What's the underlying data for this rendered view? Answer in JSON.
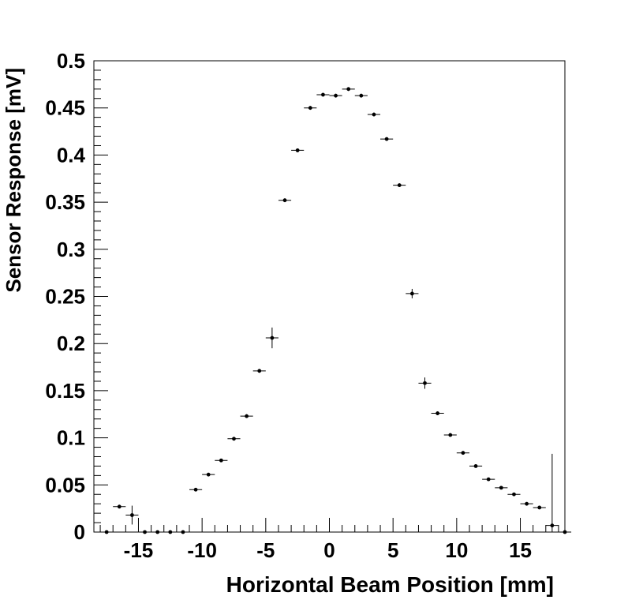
{
  "chart_data": {
    "type": "scatter",
    "title": "",
    "xlabel": "Horizontal Beam Position [mm]",
    "ylabel": "Sensor Response [mV]",
    "xlim": [
      -18.5,
      18.5
    ],
    "ylim": [
      0,
      0.5
    ],
    "xticks": [
      -15,
      -10,
      -5,
      0,
      5,
      10,
      15
    ],
    "xtick_labels": [
      "-15",
      "-10",
      "-5",
      "0",
      "5",
      "10",
      "15"
    ],
    "yticks": [
      0,
      0.05,
      0.1,
      0.15,
      0.2,
      0.25,
      0.3,
      0.35,
      0.4,
      0.45,
      0.5
    ],
    "ytick_labels": [
      "0",
      "0.05",
      "0.1",
      "0.15",
      "0.2",
      "0.25",
      "0.3",
      "0.35",
      "0.4",
      "0.45",
      "0.5"
    ],
    "grid": false,
    "legend": "none",
    "marker_color": "#000000",
    "x_bin_half_width": 0.5,
    "points": [
      {
        "x": -17.5,
        "y": 0.0,
        "err": 0.0
      },
      {
        "x": -16.5,
        "y": 0.027,
        "err": 0.002
      },
      {
        "x": -15.5,
        "y": 0.018,
        "err": 0.01
      },
      {
        "x": -14.5,
        "y": 0.0,
        "err": 0.0
      },
      {
        "x": -13.5,
        "y": 0.0,
        "err": 0.0
      },
      {
        "x": -12.5,
        "y": 0.0,
        "err": 0.0
      },
      {
        "x": -11.5,
        "y": 0.0,
        "err": 0.0
      },
      {
        "x": -10.5,
        "y": 0.045,
        "err": 0.001
      },
      {
        "x": -9.5,
        "y": 0.061,
        "err": 0.001
      },
      {
        "x": -8.5,
        "y": 0.076,
        "err": 0.001
      },
      {
        "x": -7.5,
        "y": 0.099,
        "err": 0.001
      },
      {
        "x": -6.5,
        "y": 0.123,
        "err": 0.002
      },
      {
        "x": -5.5,
        "y": 0.171,
        "err": 0.002
      },
      {
        "x": -4.5,
        "y": 0.206,
        "err": 0.011
      },
      {
        "x": -3.5,
        "y": 0.352,
        "err": 0.002
      },
      {
        "x": -2.5,
        "y": 0.405,
        "err": 0.002
      },
      {
        "x": -1.5,
        "y": 0.45,
        "err": 0.002
      },
      {
        "x": -0.5,
        "y": 0.464,
        "err": 0.002
      },
      {
        "x": 0.5,
        "y": 0.463,
        "err": 0.002
      },
      {
        "x": 1.5,
        "y": 0.47,
        "err": 0.002
      },
      {
        "x": 2.5,
        "y": 0.463,
        "err": 0.002
      },
      {
        "x": 3.5,
        "y": 0.443,
        "err": 0.002
      },
      {
        "x": 4.5,
        "y": 0.417,
        "err": 0.002
      },
      {
        "x": 5.5,
        "y": 0.368,
        "err": 0.002
      },
      {
        "x": 6.5,
        "y": 0.253,
        "err": 0.005
      },
      {
        "x": 7.5,
        "y": 0.158,
        "err": 0.006
      },
      {
        "x": 8.5,
        "y": 0.126,
        "err": 0.002
      },
      {
        "x": 9.5,
        "y": 0.103,
        "err": 0.001
      },
      {
        "x": 10.5,
        "y": 0.084,
        "err": 0.001
      },
      {
        "x": 11.5,
        "y": 0.07,
        "err": 0.001
      },
      {
        "x": 12.5,
        "y": 0.056,
        "err": 0.001
      },
      {
        "x": 13.5,
        "y": 0.047,
        "err": 0.001
      },
      {
        "x": 14.5,
        "y": 0.04,
        "err": 0.001
      },
      {
        "x": 15.5,
        "y": 0.03,
        "err": 0.001
      },
      {
        "x": 16.5,
        "y": 0.026,
        "err": 0.001
      },
      {
        "x": 17.5,
        "y": 0.007,
        "err": 0.076
      },
      {
        "x": 18.5,
        "y": 0.0,
        "err": 0.0
      }
    ]
  }
}
